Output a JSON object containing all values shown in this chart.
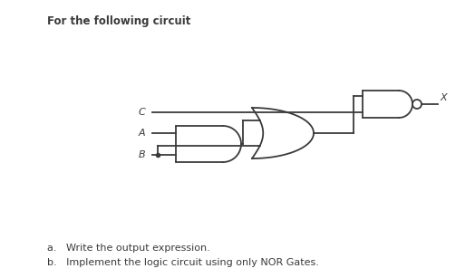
{
  "title": "For the following circuit",
  "subtitle_a": "a.   Write the output expression.",
  "subtitle_b": "b.   Implement the logic circuit using only NOR Gates.",
  "background_color": "#ffffff",
  "line_color": "#3a3a3a",
  "label_A": "A",
  "label_B": "B",
  "label_C": "C",
  "label_X": "X",
  "figsize": [
    5.24,
    3.07
  ],
  "dpi": 100
}
